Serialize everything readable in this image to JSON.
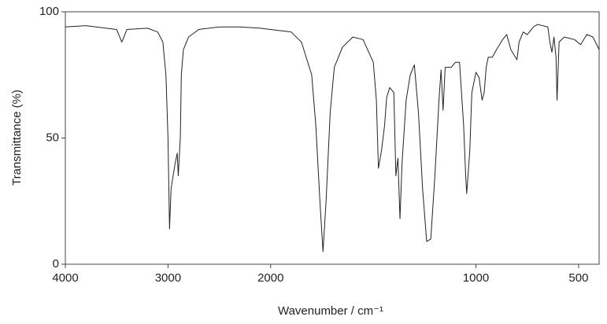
{
  "chart_data": {
    "type": "line",
    "xlabel": "Wavenumber / cm⁻¹",
    "ylabel": "Transmittance (%)",
    "xlim": [
      4000,
      400
    ],
    "ylim": [
      0,
      100
    ],
    "xticks": [
      4000,
      3000,
      2000,
      1000,
      500
    ],
    "yticks": [
      0,
      50,
      100
    ],
    "x_scale_expansion": {
      "below": 2000,
      "factor": 2
    },
    "grid": false,
    "x": [
      4000,
      3800,
      3500,
      3450,
      3400,
      3200,
      3100,
      3050,
      3020,
      3000,
      2985,
      2970,
      2950,
      2930,
      2910,
      2900,
      2880,
      2870,
      2850,
      2800,
      2700,
      2500,
      2300,
      2100,
      2000,
      1900,
      1850,
      1800,
      1780,
      1760,
      1745,
      1730,
      1710,
      1690,
      1650,
      1600,
      1550,
      1500,
      1485,
      1475,
      1460,
      1445,
      1435,
      1420,
      1400,
      1390,
      1380,
      1370,
      1360,
      1340,
      1320,
      1300,
      1280,
      1260,
      1240,
      1220,
      1200,
      1180,
      1170,
      1160,
      1150,
      1120,
      1100,
      1080,
      1060,
      1050,
      1045,
      1030,
      1020,
      1000,
      985,
      970,
      960,
      950,
      940,
      920,
      900,
      870,
      850,
      830,
      800,
      790,
      770,
      750,
      720,
      700,
      650,
      640,
      630,
      620,
      610,
      605,
      595,
      570,
      520,
      490,
      460,
      430,
      400
    ],
    "series": [
      {
        "color": "#222222",
        "values": [
          94,
          94.5,
          93,
          88,
          93,
          93.5,
          92,
          88,
          75,
          50,
          14,
          30,
          35,
          40,
          44,
          35,
          50,
          75,
          85,
          90,
          93,
          94,
          94,
          93.5,
          93,
          92,
          88,
          75,
          55,
          25,
          5,
          25,
          60,
          78,
          86,
          90,
          89,
          80,
          65,
          38,
          45,
          55,
          66,
          70,
          68,
          35,
          42,
          18,
          40,
          65,
          75,
          79,
          60,
          30,
          9,
          10,
          35,
          65,
          77,
          61,
          78,
          78,
          80,
          80,
          55,
          35,
          28,
          45,
          68,
          76,
          74,
          65,
          68,
          78,
          82,
          82,
          85,
          89,
          91,
          85,
          81,
          88,
          92,
          91,
          94,
          95,
          94,
          88,
          84,
          90,
          82,
          65,
          88,
          90,
          89,
          87,
          91,
          90,
          85
        ]
      }
    ]
  }
}
